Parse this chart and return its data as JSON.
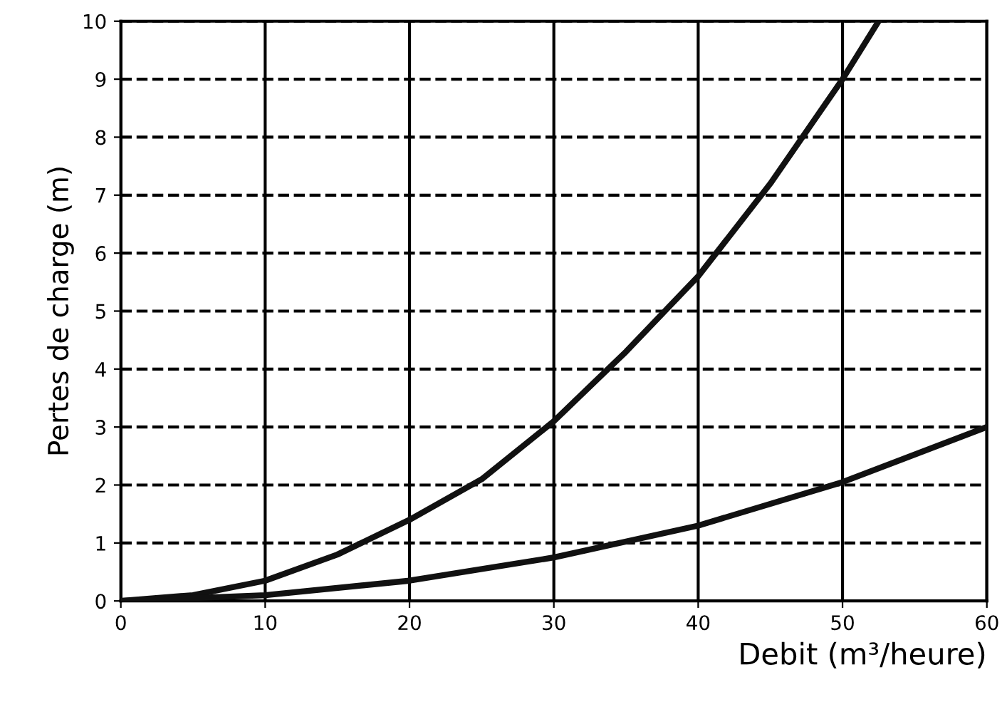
{
  "chart_data": {
    "type": "line",
    "xlabel": "Debit (m³/heure)",
    "ylabel": "Pertes de charge (m)",
    "xlim": [
      0,
      60
    ],
    "ylim": [
      0,
      10
    ],
    "xticks": [
      0,
      10,
      20,
      30,
      40,
      50,
      60
    ],
    "yticks": [
      0,
      1,
      2,
      3,
      4,
      5,
      6,
      7,
      8,
      9,
      10
    ],
    "grid": true,
    "marker": "none",
    "line_style": "solid",
    "series": [
      {
        "color": "#111111",
        "x": [
          0,
          5,
          10,
          15,
          20,
          25,
          30,
          35,
          40,
          45,
          50,
          52.5
        ],
        "values": [
          0,
          0.1,
          0.35,
          0.8,
          1.4,
          2.1,
          3.1,
          4.3,
          5.6,
          7.2,
          9.0,
          10
        ]
      },
      {
        "color": "#111111",
        "x": [
          0,
          10,
          20,
          30,
          40,
          50,
          60
        ],
        "values": [
          0,
          0.1,
          0.35,
          0.75,
          1.3,
          2.05,
          3.0
        ]
      }
    ]
  }
}
